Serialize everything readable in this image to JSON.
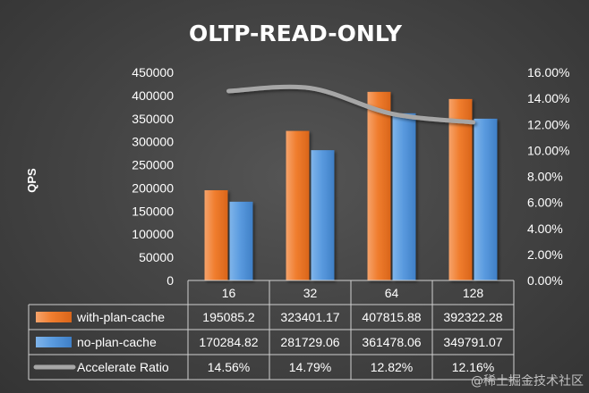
{
  "chart_data": {
    "type": "bar",
    "title": "OLTP-READ-ONLY",
    "ylabel": "QPS",
    "ylim": [
      0,
      450000
    ],
    "y2lim": [
      0,
      0.16
    ],
    "yticks": [
      "0",
      "50000",
      "100000",
      "150000",
      "200000",
      "250000",
      "300000",
      "350000",
      "400000",
      "450000"
    ],
    "y2ticks": [
      "0.00%",
      "2.00%",
      "4.00%",
      "6.00%",
      "8.00%",
      "10.00%",
      "12.00%",
      "14.00%",
      "16.00%"
    ],
    "categories": [
      "16",
      "32",
      "64",
      "128"
    ],
    "series": [
      {
        "name": "with-plan-cache",
        "kind": "bar",
        "color": "#F0782A",
        "values": [
          195085.2,
          323401.17,
          407815.88,
          392322.28
        ],
        "labels": [
          "195085.2",
          "323401.17",
          "407815.88",
          "392322.28"
        ]
      },
      {
        "name": "no-plan-cache",
        "kind": "bar",
        "color": "#4F92D8",
        "values": [
          170284.82,
          281729.06,
          361478.06,
          349791.07
        ],
        "labels": [
          "170284.82",
          "281729.06",
          "361478.06",
          "349791.07"
        ]
      },
      {
        "name": "Accelerate Ratio",
        "kind": "line",
        "axis": "right",
        "color": "#A6A6A6",
        "values": [
          0.1456,
          0.1479,
          0.1282,
          0.1216
        ],
        "labels": [
          "14.56%",
          "14.79%",
          "12.82%",
          "12.16%"
        ]
      }
    ],
    "legend": "data-table-bottom",
    "grid": false
  },
  "watermark": "@稀土掘金技术社区"
}
